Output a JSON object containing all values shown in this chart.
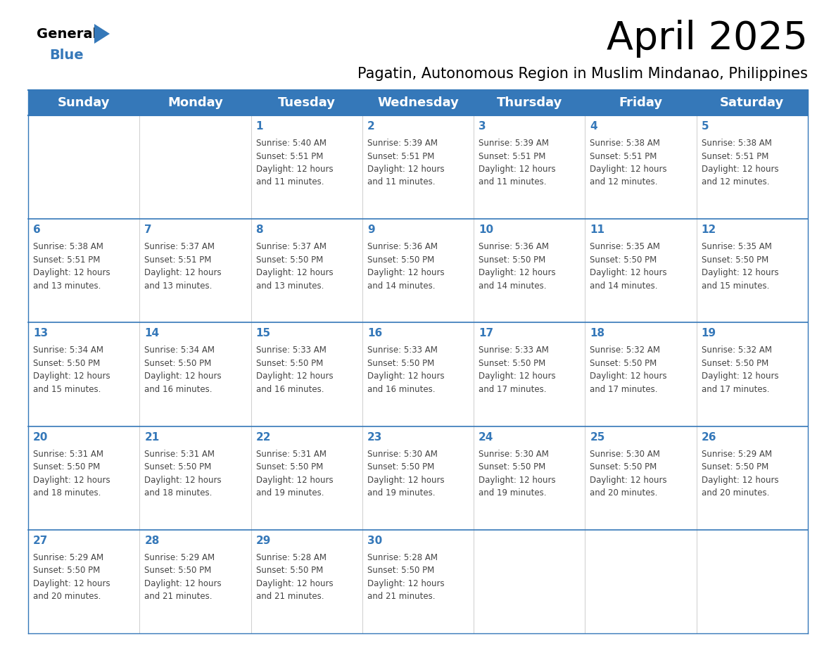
{
  "title": "April 2025",
  "subtitle": "Pagatin, Autonomous Region in Muslim Mindanao, Philippines",
  "header_color": "#3578b9",
  "header_text_color": "#ffffff",
  "cell_bg_color": "#ffffff",
  "day_text_color": "#3578b9",
  "content_text_color": "#444444",
  "border_color": "#3578b9",
  "line_color": "#3578b9",
  "weekdays": [
    "Sunday",
    "Monday",
    "Tuesday",
    "Wednesday",
    "Thursday",
    "Friday",
    "Saturday"
  ],
  "days_data": [
    {
      "day": "",
      "col": 0,
      "row": 0,
      "sunrise": "",
      "sunset": "",
      "daylight": ""
    },
    {
      "day": "",
      "col": 1,
      "row": 0,
      "sunrise": "",
      "sunset": "",
      "daylight": ""
    },
    {
      "day": "1",
      "col": 2,
      "row": 0,
      "sunrise": "5:40 AM",
      "sunset": "5:51 PM",
      "daylight": "12 hours and 11 minutes"
    },
    {
      "day": "2",
      "col": 3,
      "row": 0,
      "sunrise": "5:39 AM",
      "sunset": "5:51 PM",
      "daylight": "12 hours and 11 minutes"
    },
    {
      "day": "3",
      "col": 4,
      "row": 0,
      "sunrise": "5:39 AM",
      "sunset": "5:51 PM",
      "daylight": "12 hours and 11 minutes"
    },
    {
      "day": "4",
      "col": 5,
      "row": 0,
      "sunrise": "5:38 AM",
      "sunset": "5:51 PM",
      "daylight": "12 hours and 12 minutes"
    },
    {
      "day": "5",
      "col": 6,
      "row": 0,
      "sunrise": "5:38 AM",
      "sunset": "5:51 PM",
      "daylight": "12 hours and 12 minutes"
    },
    {
      "day": "6",
      "col": 0,
      "row": 1,
      "sunrise": "5:38 AM",
      "sunset": "5:51 PM",
      "daylight": "12 hours and 13 minutes"
    },
    {
      "day": "7",
      "col": 1,
      "row": 1,
      "sunrise": "5:37 AM",
      "sunset": "5:51 PM",
      "daylight": "12 hours and 13 minutes"
    },
    {
      "day": "8",
      "col": 2,
      "row": 1,
      "sunrise": "5:37 AM",
      "sunset": "5:50 PM",
      "daylight": "12 hours and 13 minutes"
    },
    {
      "day": "9",
      "col": 3,
      "row": 1,
      "sunrise": "5:36 AM",
      "sunset": "5:50 PM",
      "daylight": "12 hours and 14 minutes"
    },
    {
      "day": "10",
      "col": 4,
      "row": 1,
      "sunrise": "5:36 AM",
      "sunset": "5:50 PM",
      "daylight": "12 hours and 14 minutes"
    },
    {
      "day": "11",
      "col": 5,
      "row": 1,
      "sunrise": "5:35 AM",
      "sunset": "5:50 PM",
      "daylight": "12 hours and 14 minutes"
    },
    {
      "day": "12",
      "col": 6,
      "row": 1,
      "sunrise": "5:35 AM",
      "sunset": "5:50 PM",
      "daylight": "12 hours and 15 minutes"
    },
    {
      "day": "13",
      "col": 0,
      "row": 2,
      "sunrise": "5:34 AM",
      "sunset": "5:50 PM",
      "daylight": "12 hours and 15 minutes"
    },
    {
      "day": "14",
      "col": 1,
      "row": 2,
      "sunrise": "5:34 AM",
      "sunset": "5:50 PM",
      "daylight": "12 hours and 16 minutes"
    },
    {
      "day": "15",
      "col": 2,
      "row": 2,
      "sunrise": "5:33 AM",
      "sunset": "5:50 PM",
      "daylight": "12 hours and 16 minutes"
    },
    {
      "day": "16",
      "col": 3,
      "row": 2,
      "sunrise": "5:33 AM",
      "sunset": "5:50 PM",
      "daylight": "12 hours and 16 minutes"
    },
    {
      "day": "17",
      "col": 4,
      "row": 2,
      "sunrise": "5:33 AM",
      "sunset": "5:50 PM",
      "daylight": "12 hours and 17 minutes"
    },
    {
      "day": "18",
      "col": 5,
      "row": 2,
      "sunrise": "5:32 AM",
      "sunset": "5:50 PM",
      "daylight": "12 hours and 17 minutes"
    },
    {
      "day": "19",
      "col": 6,
      "row": 2,
      "sunrise": "5:32 AM",
      "sunset": "5:50 PM",
      "daylight": "12 hours and 17 minutes"
    },
    {
      "day": "20",
      "col": 0,
      "row": 3,
      "sunrise": "5:31 AM",
      "sunset": "5:50 PM",
      "daylight": "12 hours and 18 minutes"
    },
    {
      "day": "21",
      "col": 1,
      "row": 3,
      "sunrise": "5:31 AM",
      "sunset": "5:50 PM",
      "daylight": "12 hours and 18 minutes"
    },
    {
      "day": "22",
      "col": 2,
      "row": 3,
      "sunrise": "5:31 AM",
      "sunset": "5:50 PM",
      "daylight": "12 hours and 19 minutes"
    },
    {
      "day": "23",
      "col": 3,
      "row": 3,
      "sunrise": "5:30 AM",
      "sunset": "5:50 PM",
      "daylight": "12 hours and 19 minutes"
    },
    {
      "day": "24",
      "col": 4,
      "row": 3,
      "sunrise": "5:30 AM",
      "sunset": "5:50 PM",
      "daylight": "12 hours and 19 minutes"
    },
    {
      "day": "25",
      "col": 5,
      "row": 3,
      "sunrise": "5:30 AM",
      "sunset": "5:50 PM",
      "daylight": "12 hours and 20 minutes"
    },
    {
      "day": "26",
      "col": 6,
      "row": 3,
      "sunrise": "5:29 AM",
      "sunset": "5:50 PM",
      "daylight": "12 hours and 20 minutes"
    },
    {
      "day": "27",
      "col": 0,
      "row": 4,
      "sunrise": "5:29 AM",
      "sunset": "5:50 PM",
      "daylight": "12 hours and 20 minutes"
    },
    {
      "day": "28",
      "col": 1,
      "row": 4,
      "sunrise": "5:29 AM",
      "sunset": "5:50 PM",
      "daylight": "12 hours and 21 minutes"
    },
    {
      "day": "29",
      "col": 2,
      "row": 4,
      "sunrise": "5:28 AM",
      "sunset": "5:50 PM",
      "daylight": "12 hours and 21 minutes"
    },
    {
      "day": "30",
      "col": 3,
      "row": 4,
      "sunrise": "5:28 AM",
      "sunset": "5:50 PM",
      "daylight": "12 hours and 21 minutes"
    },
    {
      "day": "",
      "col": 4,
      "row": 4,
      "sunrise": "",
      "sunset": "",
      "daylight": ""
    },
    {
      "day": "",
      "col": 5,
      "row": 4,
      "sunrise": "",
      "sunset": "",
      "daylight": ""
    },
    {
      "day": "",
      "col": 6,
      "row": 4,
      "sunrise": "",
      "sunset": "",
      "daylight": ""
    }
  ],
  "num_rows": 5,
  "num_cols": 7,
  "title_fontsize": 40,
  "subtitle_fontsize": 15,
  "header_fontsize": 13,
  "day_num_fontsize": 11,
  "cell_text_fontsize": 8.5
}
